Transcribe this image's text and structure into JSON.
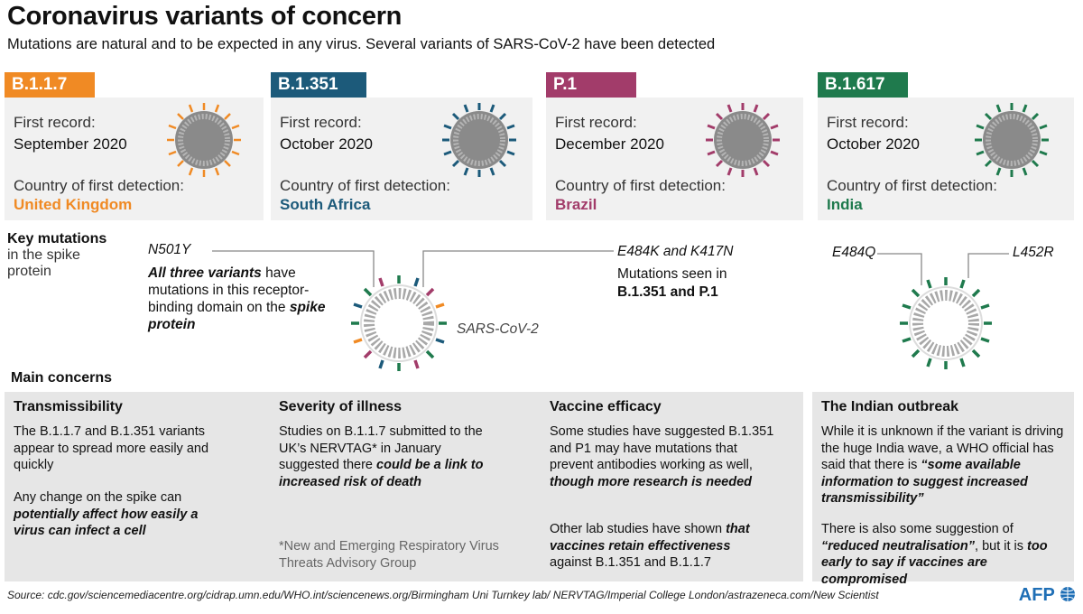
{
  "title": "Coronavirus variants of concern",
  "subtitle": "Mutations are natural and to be expected in any virus. Several variants of SARS-CoV-2 have been detected",
  "variants": [
    {
      "name": "B.1.1.7",
      "first_record_label": "First record:",
      "first_record": "September 2020",
      "country_label": "Country of first detection:",
      "country": "United Kingdom",
      "color": "#f08a24"
    },
    {
      "name": "B.1.351",
      "first_record_label": "First record:",
      "first_record": "October 2020",
      "country_label": "Country of first detection:",
      "country": "South Africa",
      "color": "#1c5a7a"
    },
    {
      "name": "P.1",
      "first_record_label": "First record:",
      "first_record": "December 2020",
      "country_label": "Country of first detection:",
      "country": "Brazil",
      "color": "#a23c6a"
    },
    {
      "name": "B.1.617",
      "first_record_label": "First record:",
      "first_record": "October 2020",
      "country_label": "Country of first detection:",
      "country": "India",
      "color": "#1f7a4d"
    }
  ],
  "key_mutations": {
    "title": "Key mutations",
    "subtitle": "in the spike protein",
    "n501y_label": "N501Y",
    "n501y_text_1": "All three variants",
    "n501y_text_2": " have mutations in this receptor-binding domain on the ",
    "n501y_text_3": "spike protein",
    "e484k_label": "E484K and K417N",
    "e484k_text_1": "Mutations seen in",
    "e484k_text_2": "B.1.351 and P.1",
    "virus_label": "SARS-CoV-2",
    "e484q_label": "E484Q",
    "l452r_label": "L452R"
  },
  "main_concerns": {
    "title": "Main concerns",
    "transmissibility": {
      "head": "Transmissibility",
      "p1": "The B.1.1.7 and B.1.351 variants appear to spread more easily and quickly",
      "p2a": "Any change on the spike can ",
      "p2b": "potentially affect how easily a virus can infect a cell"
    },
    "severity": {
      "head": "Severity of illness",
      "p1a": "Studies on B.1.1.7 submitted to the UK’s NERVTAG* in January suggested there ",
      "p1b": "could be a link to increased risk of death",
      "footnote": "*New and Emerging Respiratory Virus Threats Advisory Group"
    },
    "vaccine": {
      "head": "Vaccine efficacy",
      "p1a": "Some studies have suggested B.1.351 and P1 may have mutations that prevent antibodies working as well, ",
      "p1b": "though more research is needed",
      "p2a": "Other lab studies have shown ",
      "p2b": "that vaccines retain effectiveness",
      "p2c": " against B.1.351 and B.1.1.7"
    },
    "india": {
      "head": "The Indian outbreak",
      "p1a": "While it is unknown if the variant is driving the huge India wave, a WHO official has said that there is ",
      "p1b": "“some available information to suggest increased transmissibility”",
      "p2a": "There is also some suggestion of ",
      "p2b": "“reduced neutralisation”",
      "p2c": ", but it is ",
      "p2d": "too early to say if vaccines are compromised"
    }
  },
  "source": "Source: cdc.gov/sciencemediacentre.org/cidrap.umn.edu/WHO.int/sciencenews.org/Birmingham Uni Turnkey lab/ NERVTAG/Imperial College London/astrazeneca.com/New Scientist",
  "logo": "AFP"
}
